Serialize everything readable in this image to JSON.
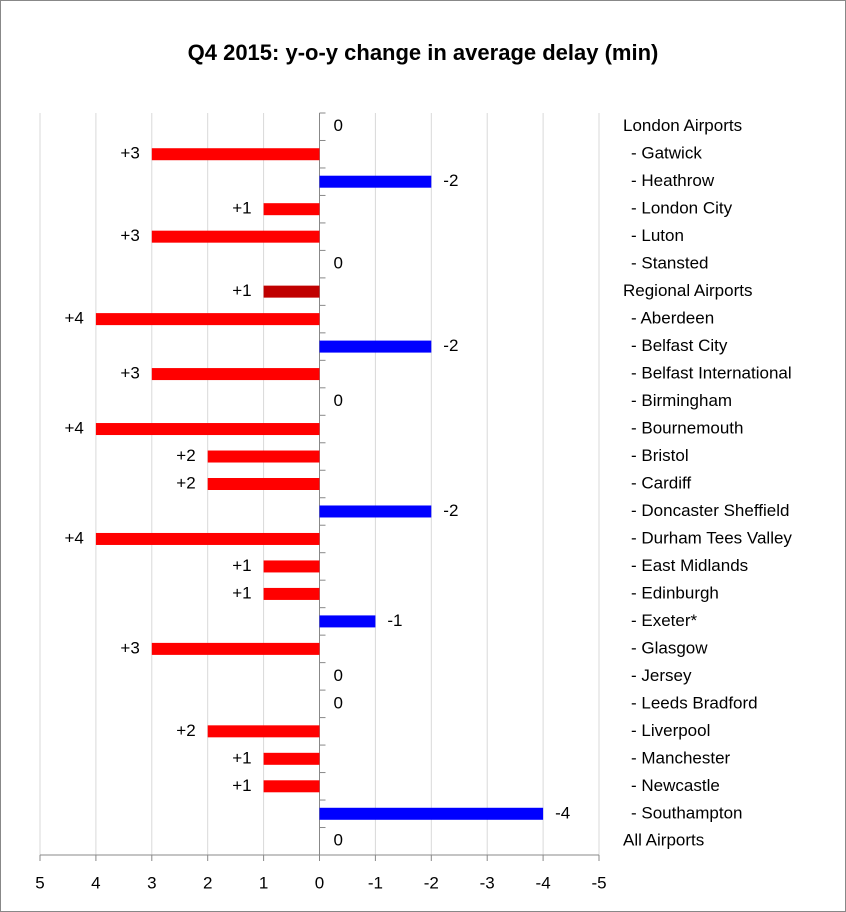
{
  "chart_data": {
    "type": "bar",
    "orientation": "horizontal",
    "title": "Q4 2015: y-o-y change in average delay (min)",
    "categories": [
      "London Airports",
      "- Gatwick",
      "- Heathrow",
      "- London City",
      "- Luton",
      "- Stansted",
      "Regional Airports",
      "- Aberdeen",
      "- Belfast City",
      "- Belfast International",
      "- Birmingham",
      "- Bournemouth",
      "- Bristol",
      "- Cardiff",
      "- Doncaster Sheffield",
      "- Durham Tees Valley",
      "- East Midlands",
      "- Edinburgh",
      "- Exeter*",
      "- Glasgow",
      "- Jersey",
      "- Leeds Bradford",
      "- Liverpool",
      "- Manchester",
      "- Newcastle",
      "- Southampton",
      "All Airports"
    ],
    "values": [
      0,
      3,
      -2,
      1,
      3,
      0,
      1,
      4,
      -2,
      3,
      0,
      4,
      2,
      2,
      -2,
      4,
      1,
      1,
      -1,
      3,
      0,
      0,
      2,
      1,
      1,
      -4,
      0
    ],
    "value_labels": [
      "0",
      "+3",
      "-2",
      "+1",
      "+3",
      "0",
      "+1",
      "+4",
      "-2",
      "+3",
      "0",
      "+4",
      "+2",
      "+2",
      "-2",
      "+4",
      "+1",
      "+1",
      "-1",
      "+3",
      "0",
      "0",
      "+2",
      "+1",
      "+1",
      "-4",
      "0"
    ],
    "colors": [
      "#ff0000",
      "#ff0000",
      "#0000ff",
      "#ff0000",
      "#ff0000",
      "#ff0000",
      "#c00000",
      "#ff0000",
      "#0000ff",
      "#ff0000",
      "#ff0000",
      "#ff0000",
      "#ff0000",
      "#ff0000",
      "#0000ff",
      "#ff0000",
      "#ff0000",
      "#ff0000",
      "#0000ff",
      "#ff0000",
      "#ff0000",
      "#ff0000",
      "#ff0000",
      "#ff0000",
      "#ff0000",
      "#0000ff",
      "#ff0000"
    ],
    "xlim": [
      5,
      -5
    ],
    "xticks": [
      5,
      4,
      3,
      2,
      1,
      0,
      -1,
      -2,
      -3,
      -4,
      -5
    ],
    "grid": true
  }
}
